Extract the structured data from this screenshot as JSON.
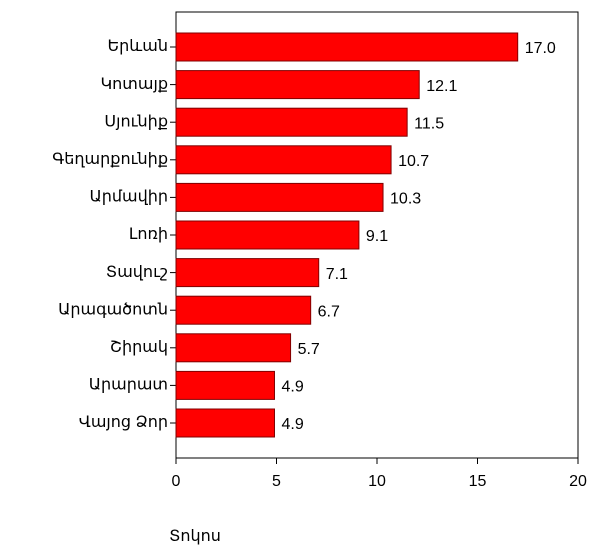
{
  "chart_data": {
    "type": "bar",
    "orientation": "horizontal",
    "x_label": "Տոկոս",
    "categories": [
      "Երևան",
      "Կոտայք",
      "Սյունիք",
      "Գեղարքունիք",
      "Արմավիր",
      "Լոռի",
      "Տավուշ",
      "Արագածոտն",
      "Շիրակ",
      "Արարատ",
      "Վայոց Ձոր"
    ],
    "values": [
      17.0,
      12.1,
      11.5,
      10.7,
      10.3,
      9.1,
      7.1,
      6.7,
      5.7,
      4.9,
      4.9
    ],
    "value_labels": [
      "17.0",
      "12.1",
      "11.5",
      "10.7",
      "10.3",
      "9.1",
      "7.1",
      "6.7",
      "5.7",
      "4.9",
      "4.9"
    ],
    "color": "#ff0000",
    "xlim": [
      0,
      20
    ],
    "xticks": [
      0,
      5,
      10,
      15,
      20
    ]
  }
}
